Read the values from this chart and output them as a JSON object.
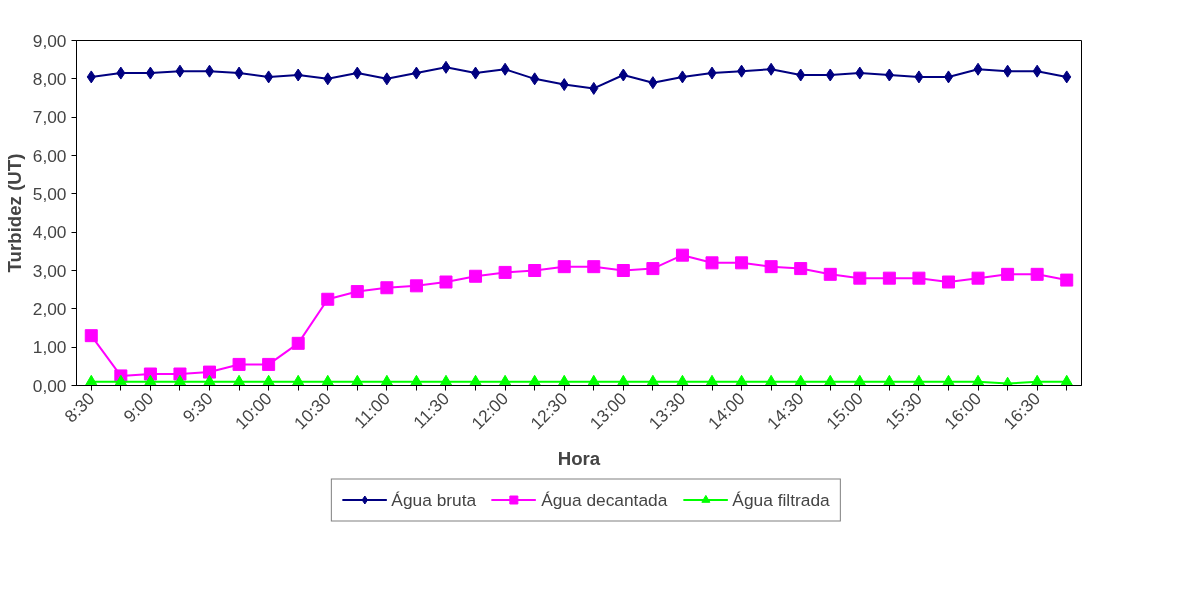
{
  "chart_data": {
    "type": "line",
    "xlabel": "Hora",
    "ylabel": "Turbidez (UT)",
    "categories": [
      "8:30",
      null,
      "9:00",
      null,
      "9:30",
      null,
      "10:00",
      null,
      "10:30",
      null,
      "11:00",
      null,
      "11:30",
      null,
      "12:00",
      null,
      "12:30",
      null,
      "13:00",
      null,
      "13:30",
      null,
      "14:00",
      null,
      "14:30",
      null,
      "15:00",
      null,
      "15:30",
      null,
      "16:00",
      null,
      "16:30",
      null
    ],
    "ylim": [
      0,
      9
    ],
    "yticks": [
      {
        "value": 0,
        "label": "0,00"
      },
      {
        "value": 1,
        "label": "1,00"
      },
      {
        "value": 2,
        "label": "2,00"
      },
      {
        "value": 3,
        "label": "3,00"
      },
      {
        "value": 4,
        "label": "4,00"
      },
      {
        "value": 5,
        "label": "5,00"
      },
      {
        "value": 6,
        "label": "6,00"
      },
      {
        "value": 7,
        "label": "7,00"
      },
      {
        "value": 8,
        "label": "8,00"
      },
      {
        "value": 9,
        "label": "9,00"
      }
    ],
    "grid": false,
    "legend": "bottom",
    "series": [
      {
        "name": "Água bruta",
        "color": "#000080",
        "marker": "diamond",
        "values": [
          8.05,
          8.15,
          8.15,
          8.2,
          8.2,
          8.15,
          8.05,
          8.1,
          8.0,
          8.15,
          8.0,
          8.15,
          8.3,
          8.15,
          8.25,
          8.0,
          7.85,
          7.75,
          8.1,
          7.9,
          8.05,
          8.15,
          8.2,
          8.25,
          8.1,
          8.1,
          8.15,
          8.1,
          8.05,
          8.05,
          8.25,
          8.2,
          8.2,
          8.05
        ]
      },
      {
        "name": "Água decantada",
        "color": "#ff00ff",
        "marker": "square",
        "values": [
          1.3,
          0.25,
          0.3,
          0.3,
          0.35,
          0.55,
          0.55,
          1.1,
          2.25,
          2.45,
          2.55,
          2.6,
          2.7,
          2.85,
          2.95,
          3.0,
          3.1,
          3.1,
          3.0,
          3.05,
          3.4,
          3.2,
          3.2,
          3.1,
          3.05,
          2.9,
          2.8,
          2.8,
          2.8,
          2.7,
          2.8,
          2.9,
          2.9,
          2.75
        ]
      },
      {
        "name": "Água filtrada",
        "color": "#00ff00",
        "marker": "triangle",
        "values": [
          0.1,
          0.1,
          0.1,
          0.1,
          0.1,
          0.1,
          0.1,
          0.1,
          0.1,
          0.1,
          0.1,
          0.1,
          0.1,
          0.1,
          0.1,
          0.1,
          0.1,
          0.1,
          0.1,
          0.1,
          0.1,
          0.1,
          0.1,
          0.1,
          0.1,
          0.1,
          0.1,
          0.1,
          0.1,
          0.1,
          0.1,
          0.05,
          0.1,
          0.1
        ]
      }
    ]
  }
}
